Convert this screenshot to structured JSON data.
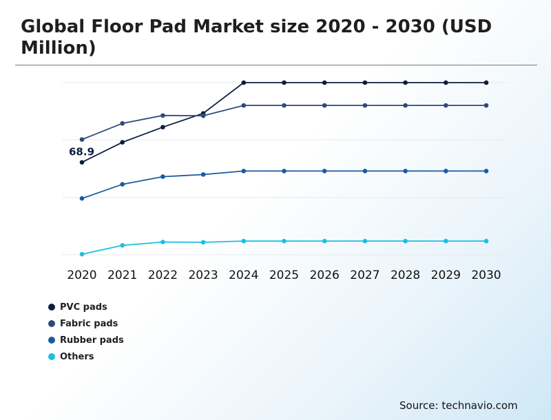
{
  "page": {
    "title": "Global Floor Pad Market size 2020 - 2030 (USD Million)",
    "source": "Source: technavio.com"
  },
  "chart_data": {
    "type": "line",
    "x": [
      "2020",
      "2021",
      "2022",
      "2023",
      "2024",
      "2025",
      "2026",
      "2027",
      "2028",
      "2029",
      "2030"
    ],
    "series": [
      {
        "name": "PVC pads",
        "color": "#0b1e3f",
        "values": [
          68.9,
          83.8,
          95.1,
          105.4,
          128.3,
          128.3,
          128.3,
          128.3,
          128.3,
          128.3,
          128.3
        ]
      },
      {
        "name": "Fabric pads",
        "color": "#2e4a7a",
        "values": [
          85.9,
          97.9,
          103.8,
          103.6,
          111.3,
          111.3,
          111.3,
          111.3,
          111.3,
          111.3,
          111.3
        ]
      },
      {
        "name": "Rubber pads",
        "color": "#1a5aa3",
        "values": [
          42.0,
          52.5,
          58.2,
          59.8,
          62.4,
          62.4,
          62.4,
          62.4,
          62.4,
          62.4,
          62.4
        ]
      },
      {
        "name": "Others",
        "color": "#1bbfe0",
        "values": [
          0.4,
          7.0,
          9.5,
          9.3,
          10.2,
          10.2,
          10.2,
          10.2,
          10.2,
          10.2,
          10.2
        ]
      }
    ],
    "annotations": [
      {
        "series": "PVC pads",
        "x": "2020",
        "text": "68.9"
      }
    ],
    "ylim": [
      0,
      128.3
    ],
    "grid": true,
    "legend": "bottom-left"
  }
}
